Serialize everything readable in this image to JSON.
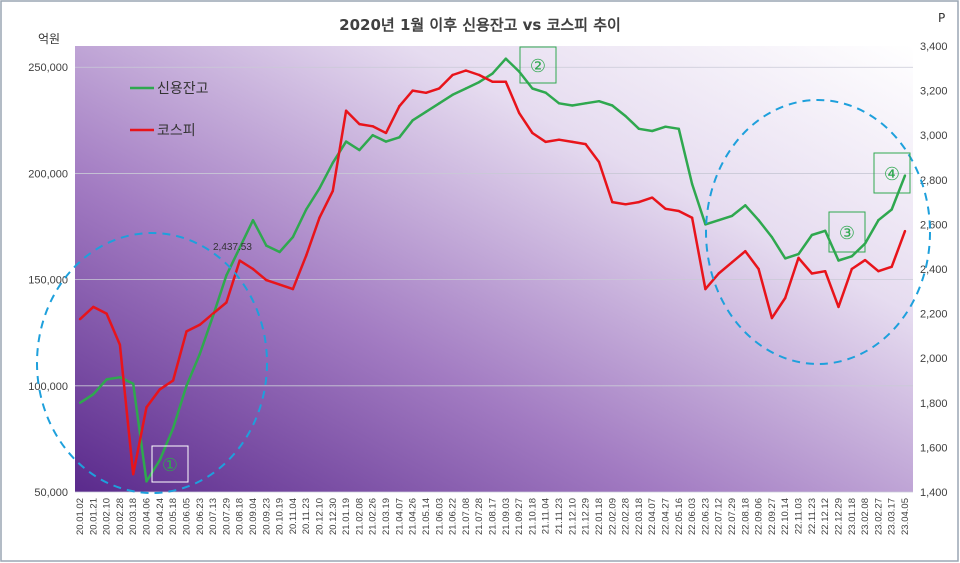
{
  "chart_data": {
    "type": "line",
    "title": "2020년 1월 이후 신용잔고 vs 코스피 추이",
    "left_axis": {
      "unit": "억원",
      "range": [
        50000,
        260000
      ],
      "ticks": [
        "50,000",
        "100,000",
        "150,000",
        "200,000",
        "250,000"
      ],
      "tick_values": [
        50000,
        100000,
        150000,
        200000,
        250000
      ]
    },
    "right_axis": {
      "unit": "P",
      "range": [
        1400,
        3400
      ],
      "ticks": [
        "1,400",
        "1,600",
        "1,800",
        "2,000",
        "2,200",
        "2,400",
        "2,600",
        "2,800",
        "3,000",
        "3,200",
        "3,400"
      ],
      "tick_values": [
        1400,
        1600,
        1800,
        2000,
        2200,
        2400,
        2600,
        2800,
        3000,
        3200,
        3400
      ]
    },
    "x_labels": [
      "20.01.02",
      "20.01.21",
      "20.02.10",
      "20.02.28",
      "20.03.18",
      "20.04.06",
      "20.04.24",
      "20.05.18",
      "20.06.05",
      "20.06.23",
      "20.07.13",
      "20.07.29",
      "20.08.18",
      "20.09.04",
      "20.09.23",
      "20.10.19",
      "20.11.04",
      "20.11.23",
      "20.12.10",
      "20.12.30",
      "21.01.19",
      "21.02.08",
      "21.02.26",
      "21.03.19",
      "21.04.07",
      "21.04.26",
      "21.05.14",
      "21.06.03",
      "21.06.22",
      "21.07.08",
      "21.07.28",
      "21.08.17",
      "21.09.03",
      "21.09.27",
      "21.10.18",
      "21.11.04",
      "21.11.23",
      "21.12.10",
      "21.12.29",
      "22.01.18",
      "22.02.09",
      "22.02.28",
      "22.03.18",
      "22.04.07",
      "22.04.27",
      "22.05.16",
      "22.06.03",
      "22.06.23",
      "22.07.12",
      "22.07.29",
      "22.08.18",
      "22.09.06",
      "22.09.27",
      "22.10.14",
      "22.11.03",
      "22.11.23",
      "22.12.12",
      "22.12.29",
      "23.01.18",
      "23.02.08",
      "23.02.27",
      "23.03.17",
      "23.04.05"
    ],
    "series": [
      {
        "name": "신용잔고",
        "axis": "left",
        "color": "#2fa84f",
        "values": [
          92000,
          96000,
          103000,
          104000,
          101000,
          55000,
          65000,
          80000,
          100000,
          115000,
          133000,
          152000,
          165000,
          178000,
          166000,
          163000,
          170000,
          183000,
          193000,
          205000,
          215000,
          211000,
          218000,
          215000,
          217000,
          225000,
          229000,
          233000,
          237000,
          240000,
          243000,
          247000,
          254000,
          248000,
          240000,
          238000,
          233000,
          232000,
          233000,
          234000,
          232000,
          227000,
          221000,
          220000,
          222000,
          221000,
          195000,
          176000,
          178000,
          180000,
          185000,
          178000,
          170000,
          160000,
          162000,
          171000,
          173000,
          159000,
          161000,
          167000,
          178000,
          183000,
          199000
        ]
      },
      {
        "name": "코스피",
        "axis": "right",
        "color": "#e8141b",
        "values": [
          2175,
          2230,
          2200,
          2060,
          1480,
          1780,
          1860,
          1900,
          2120,
          2150,
          2200,
          2250,
          2437.53,
          2400,
          2350,
          2330,
          2310,
          2460,
          2630,
          2750,
          3110,
          3050,
          3040,
          3010,
          3130,
          3200,
          3190,
          3210,
          3270,
          3290,
          3270,
          3240,
          3240,
          3100,
          3010,
          2970,
          2980,
          2970,
          2960,
          2880,
          2700,
          2690,
          2700,
          2720,
          2670,
          2660,
          2630,
          2310,
          2380,
          2430,
          2480,
          2400,
          2180,
          2270,
          2450,
          2380,
          2390,
          2230,
          2400,
          2440,
          2390,
          2410,
          2570
        ]
      }
    ],
    "annotations": [
      {
        "text": "2,437.53"
      },
      {
        "text": "①"
      },
      {
        "text": "②"
      },
      {
        "text": "③"
      },
      {
        "text": "④"
      }
    ],
    "legend": {
      "placement": "top-left"
    },
    "grid": true
  }
}
